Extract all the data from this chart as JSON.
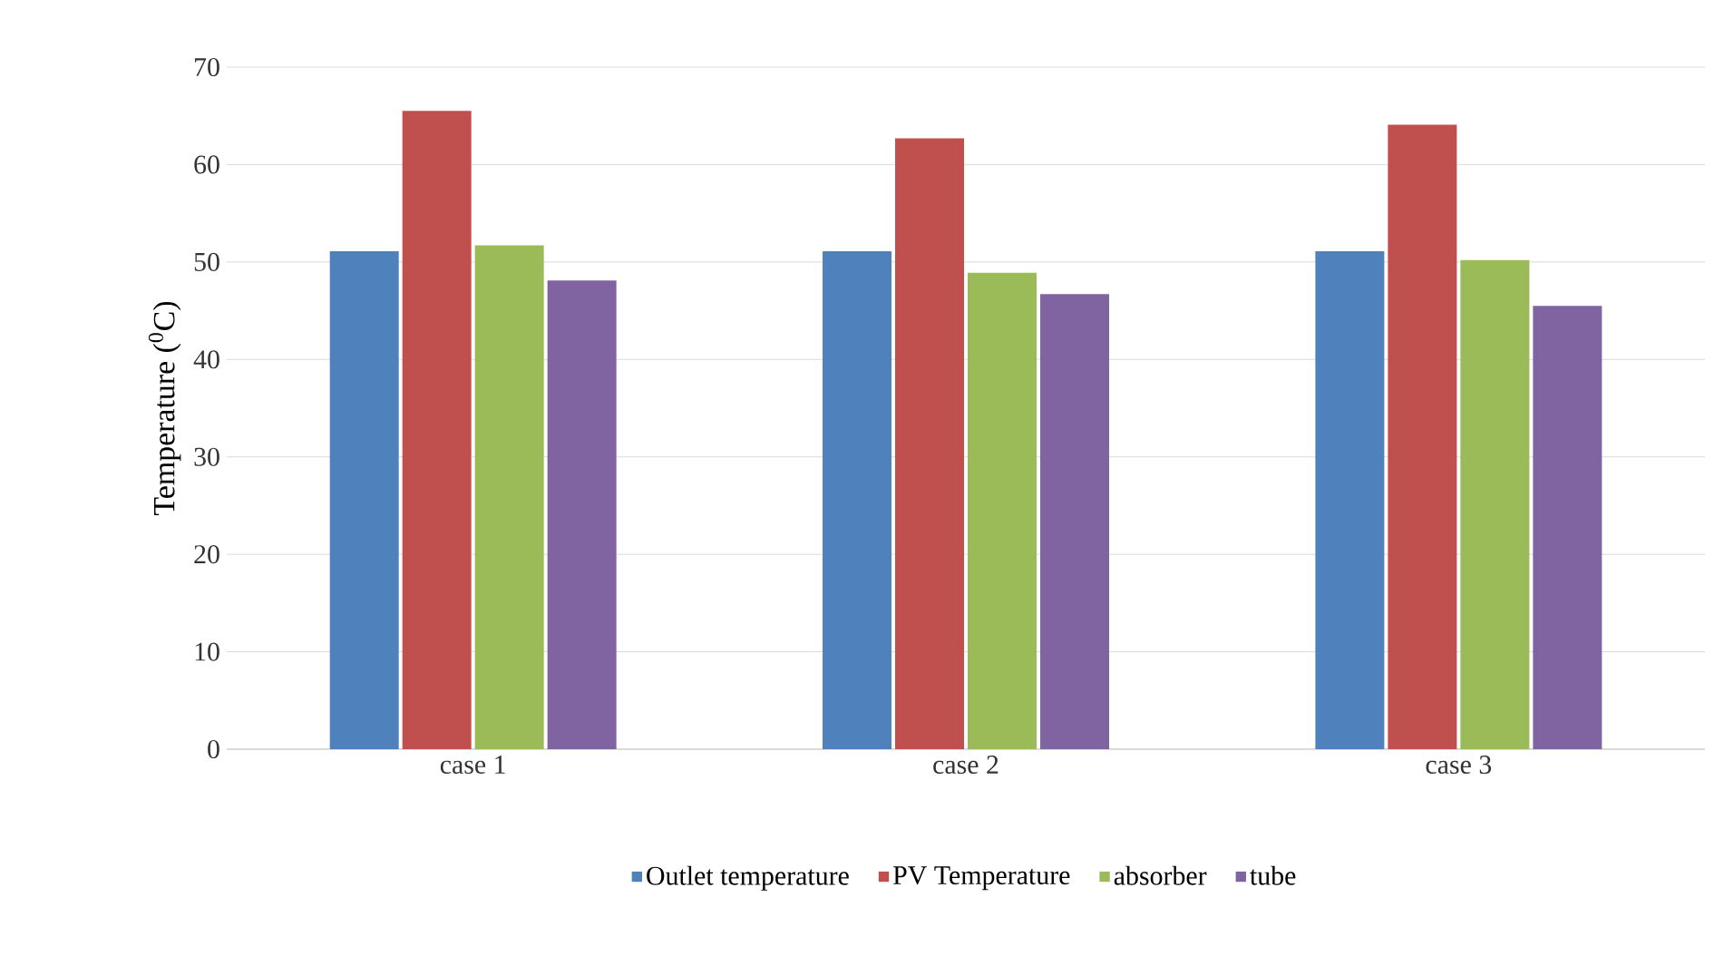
{
  "chart_data": {
    "type": "bar",
    "ylabel": "Temperature ($^{0}$C)",
    "categories": [
      "case 1",
      "case 2",
      "case 3"
    ],
    "series": [
      {
        "name": "Outlet temperature",
        "color": "#4f81bd",
        "values": [
          51.1,
          51.1,
          51.1
        ]
      },
      {
        "name": "PV Temperature",
        "color": "#c0504d",
        "values": [
          65.5,
          62.7,
          64.1
        ]
      },
      {
        "name": "absorber",
        "color": "#9bbb59",
        "values": [
          51.7,
          48.9,
          50.2
        ]
      },
      {
        "name": "tube",
        "color": "#8064a2",
        "values": [
          48.1,
          46.7,
          45.5
        ]
      }
    ],
    "ylim": [
      0,
      70
    ],
    "yticks": [
      0,
      10,
      20,
      30,
      40,
      50,
      60,
      70
    ],
    "grid": "y",
    "legend": "bottom"
  }
}
